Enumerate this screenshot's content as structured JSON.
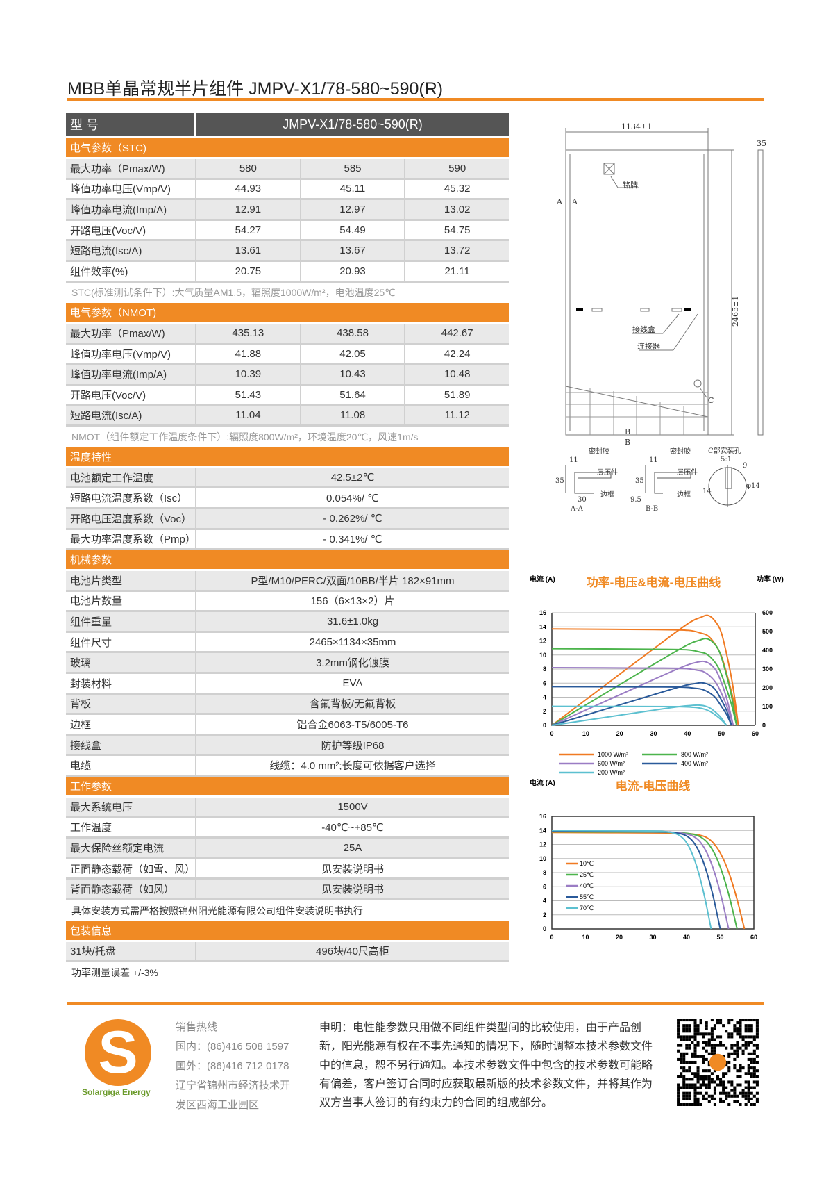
{
  "title": "MBB单晶常规半片组件 JMPV-X1/78-580~590(R)",
  "table": {
    "header": {
      "label": "型 号",
      "value": "JMPV-X1/78-580~590(R)"
    },
    "sections": [
      {
        "band": "电气参数（STC)",
        "rows": [
          {
            "label": "最大功率（Pmax/W)",
            "values": [
              "580",
              "585",
              "590"
            ]
          },
          {
            "label": "峰值功率电压(Vmp/V)",
            "values": [
              "44.93",
              "45.11",
              "45.32"
            ]
          },
          {
            "label": "峰值功率电流(Imp/A)",
            "values": [
              "12.91",
              "12.97",
              "13.02"
            ]
          },
          {
            "label": "开路电压(Voc/V)",
            "values": [
              "54.27",
              "54.49",
              "54.75"
            ]
          },
          {
            "label": "短路电流(Isc/A)",
            "values": [
              "13.61",
              "13.67",
              "13.72"
            ]
          },
          {
            "label": "组件效率(%)",
            "values": [
              "20.75",
              "20.93",
              "21.11"
            ]
          }
        ],
        "note": "STC(标准测试条件下）:大气质量AM1.5，辐照度1000W/m²，电池温度25℃"
      },
      {
        "band": "电气参数（NMOT)",
        "rows": [
          {
            "label": "最大功率（Pmax/W)",
            "values": [
              "435.13",
              "438.58",
              "442.67"
            ]
          },
          {
            "label": "峰值功率电压(Vmp/V)",
            "values": [
              "41.88",
              "42.05",
              "42.24"
            ]
          },
          {
            "label": "峰值功率电流(Imp/A)",
            "values": [
              "10.39",
              "10.43",
              "10.48"
            ]
          },
          {
            "label": "开路电压(Voc/V)",
            "values": [
              "51.43",
              "51.64",
              "51.89"
            ]
          },
          {
            "label": "短路电流(Isc/A)",
            "values": [
              "11.04",
              "11.08",
              "11.12"
            ]
          }
        ],
        "note": "NMOT（组件额定工作温度条件下）:辐照度800W/m²，环境温度20℃，风速1m/s"
      },
      {
        "band": "温度特性",
        "rows": [
          {
            "label": "电池额定工作温度",
            "values": [
              "42.5±2℃"
            ]
          },
          {
            "label": "短路电流温度系数（Isc）",
            "values": [
              "0.054%/ ℃"
            ]
          },
          {
            "label": "开路电压温度系数（Voc）",
            "values": [
              "- 0.262%/ ℃"
            ]
          },
          {
            "label": "最大功率温度系数（Pmp）",
            "values": [
              "- 0.341%/ ℃"
            ]
          }
        ]
      },
      {
        "band": "机械参数",
        "rows": [
          {
            "label": "电池片类型",
            "values": [
              "P型/M10/PERC/双面/10BB/半片  182×91mm"
            ]
          },
          {
            "label": "电池片数量",
            "values": [
              "156（6×13×2）片"
            ]
          },
          {
            "label": "组件重量",
            "values": [
              "31.6±1.0kg"
            ]
          },
          {
            "label": "组件尺寸",
            "values": [
              "2465×1134×35mm"
            ]
          },
          {
            "label": "玻璃",
            "values": [
              "3.2mm钢化镀膜"
            ]
          },
          {
            "label": "封装材料",
            "values": [
              "EVA"
            ]
          },
          {
            "label": "背板",
            "values": [
              "含氟背板/无氟背板"
            ]
          },
          {
            "label": "边框",
            "values": [
              "铝合金6063-T5/6005-T6"
            ]
          },
          {
            "label": "接线盒",
            "values": [
              "防护等级IP68"
            ]
          },
          {
            "label": "电缆",
            "values": [
              "线缆：4.0 mm²;长度可依据客户选择"
            ]
          }
        ]
      },
      {
        "band": "工作参数",
        "rows": [
          {
            "label": "最大系统电压",
            "values": [
              "1500V"
            ]
          },
          {
            "label": "工作温度",
            "values": [
              "-40℃~+85℃"
            ]
          },
          {
            "label": "最大保险丝额定电流",
            "values": [
              "25A"
            ]
          },
          {
            "label": "正面静态载荷（如雪、风）",
            "values": [
              "见安装说明书"
            ]
          },
          {
            "label": "背面静态载荷（如风）",
            "values": [
              "见安装说明书"
            ]
          }
        ],
        "note_dark": "具体安装方式需严格按照锦州阳光能源有限公司组件安装说明书执行"
      },
      {
        "band": "包装信息",
        "rows": [
          {
            "label": "31块/托盘",
            "values": [
              "496块/40尺高柜"
            ]
          }
        ],
        "note_dark": "功率测量误差  +/-3%"
      }
    ]
  },
  "drawing": {
    "width": "1134±1",
    "height": "2465±1",
    "thickness": "35",
    "nameplate": "铭牌",
    "junction_box": "接线盒",
    "connector": "连接器",
    "section_a": "A",
    "section_b": "B",
    "detail_c": "C",
    "aa": {
      "title": "A-A",
      "sealant": "密封胶",
      "laminate": "层压件",
      "frame": "边框",
      "d1": "11",
      "d2": "35",
      "d3": "30"
    },
    "bb": {
      "title": "B-B",
      "sealant": "密封胶",
      "laminate": "层压件",
      "frame": "边框",
      "d1": "11",
      "d2": "35",
      "d3": "9.5"
    },
    "c": {
      "title": "C部安装孔",
      "scale": "5:1",
      "d1": "9",
      "d2": "14",
      "d3": "φ14"
    }
  },
  "chart_data": [
    {
      "type": "line",
      "title": "功率-电压&电流-电压曲线",
      "ylabel": "电流\n(A)",
      "y2label": "功率\n(W)",
      "xlim": [
        0,
        60
      ],
      "ylim": [
        0,
        16
      ],
      "y2lim": [
        0,
        600
      ],
      "xticks": [
        0,
        10,
        20,
        30,
        40,
        50,
        60
      ],
      "yticks": [
        0,
        2,
        4,
        6,
        8,
        10,
        12,
        14,
        16
      ],
      "y2ticks": [
        0,
        100,
        200,
        300,
        400,
        500,
        600
      ],
      "grid": true,
      "legend": "bottom",
      "series": [
        {
          "name": "1000 W/m²",
          "color": "#f07a22",
          "v": [
            0,
            30.3,
            40.2,
            44,
            46,
            48,
            50,
            52,
            53.5,
            55
          ],
          "i": [
            13.7,
            13.6,
            13.5,
            13.1,
            12.74,
            11.65,
            9.86,
            6.58,
            3.7,
            0
          ],
          "p": [
            0,
            412,
            543,
            576,
            586,
            559,
            493,
            342,
            198,
            0
          ]
        },
        {
          "name": "800 W/m²",
          "color": "#4cb44c",
          "v": [
            0,
            30,
            39.8,
            43.6,
            45.6,
            47.6,
            49.5,
            51.5,
            53,
            54.5
          ],
          "i": [
            10.9,
            10.82,
            10.74,
            10.42,
            10.14,
            9.27,
            7.85,
            5.23,
            2.94,
            0
          ],
          "p": [
            0,
            325,
            427,
            454,
            462,
            441,
            389,
            269,
            156,
            0
          ]
        },
        {
          "name": "600 W/m²",
          "color": "#9a7cc4",
          "v": [
            0,
            29.4,
            39,
            42.8,
            44.7,
            46.7,
            48.6,
            50.6,
            52,
            53.5
          ],
          "i": [
            8.2,
            8.14,
            8.08,
            7.84,
            7.63,
            6.97,
            5.9,
            3.94,
            2.21,
            0
          ],
          "p": [
            0,
            239,
            315,
            336,
            341,
            326,
            287,
            199,
            115,
            0
          ]
        },
        {
          "name": "400 W/m²",
          "color": "#2a5a9a",
          "v": [
            0,
            29.2,
            38.7,
            42.4,
            44.3,
            46.3,
            48.2,
            50.1,
            51.6,
            53
          ],
          "i": [
            5.5,
            5.46,
            5.42,
            5.26,
            5.12,
            4.68,
            3.96,
            2.64,
            1.49,
            0
          ],
          "p": [
            0,
            159,
            210,
            223,
            227,
            217,
            191,
            132,
            77,
            0
          ]
        },
        {
          "name": "200 W/m²",
          "color": "#5cc0d0",
          "v": [
            0,
            28.3,
            37.6,
            41.2,
            43.1,
            45,
            46.8,
            48.7,
            50.1,
            51.5
          ],
          "i": [
            2.7,
            2.68,
            2.66,
            2.58,
            2.51,
            2.3,
            1.94,
            1.3,
            0.73,
            0
          ],
          "p": [
            0,
            76,
            100,
            106,
            108,
            104,
            91,
            63,
            37,
            0
          ]
        }
      ]
    },
    {
      "type": "line",
      "title": "电流-电压曲线",
      "ylabel": "电流\n(A)",
      "xlim": [
        0,
        60
      ],
      "ylim": [
        0,
        16
      ],
      "xticks": [
        0,
        10,
        20,
        30,
        40,
        50,
        60
      ],
      "yticks": [
        0,
        2,
        4,
        6,
        8,
        10,
        12,
        14,
        16
      ],
      "grid": true,
      "legend": "left",
      "series": [
        {
          "name": "10℃",
          "color": "#f07a22",
          "v": [
            0,
            34.3,
            40,
            43.5,
            45.8,
            48,
            50.3,
            52.6,
            54.9,
            57.2
          ],
          "i": [
            13.7,
            13.63,
            13.56,
            13.36,
            13.02,
            12.19,
            10.55,
            7.95,
            4.38,
            0
          ]
        },
        {
          "name": "25℃",
          "color": "#4cb44c",
          "v": [
            0,
            33,
            38.5,
            41.8,
            44,
            46.2,
            48.4,
            50.6,
            52.8,
            55
          ],
          "i": [
            13.8,
            13.73,
            13.66,
            13.46,
            13.11,
            12.28,
            10.63,
            8.0,
            4.42,
            0
          ]
        },
        {
          "name": "40℃",
          "color": "#9a7cc4",
          "v": [
            0,
            31.5,
            36.8,
            39.9,
            42,
            44.1,
            46.2,
            48.3,
            50.4,
            52.5
          ],
          "i": [
            13.85,
            13.78,
            13.71,
            13.5,
            13.16,
            12.33,
            10.66,
            8.03,
            4.43,
            0
          ]
        },
        {
          "name": "55℃",
          "color": "#2a5a9a",
          "v": [
            0,
            30,
            35,
            38,
            40,
            42,
            44,
            46,
            48,
            50
          ],
          "i": [
            13.9,
            13.83,
            13.76,
            13.55,
            13.21,
            12.37,
            10.7,
            8.06,
            4.45,
            0
          ]
        },
        {
          "name": "70℃",
          "color": "#5cc0d0",
          "v": [
            0,
            28.4,
            33.1,
            35.9,
            37.8,
            39.7,
            41.6,
            43.5,
            45.4,
            47.3
          ],
          "i": [
            14.0,
            13.93,
            13.86,
            13.65,
            13.3,
            12.46,
            10.78,
            8.12,
            4.48,
            0
          ]
        }
      ]
    }
  ],
  "footer": {
    "hotline_label": "销售热线",
    "domestic": "国内：(86)416 508 1597",
    "overseas": "国外：(86)416 712 0178",
    "address1": "辽宁省锦州市经济技术开",
    "address2": "发区西海工业园区",
    "declaration": "申明：电性能参数只用做不同组件类型间的比较使用，由于产品创新，阳光能源有权在不事先通知的情况下，随时调整本技术参数文件中的信息，恕不另行通知。本技术参数文件中包含的技术参数可能略有偏差，客户签订合同时应获取最新版的技术参数文件，并将其作为双方当事人签订的有约束力的合同的组成部分。",
    "logo_letter": "S",
    "brand": "Solargiga Energy"
  },
  "colors": {
    "accent": "#f08a24",
    "header": "#555555",
    "brand_green": "#6a9a2a"
  }
}
